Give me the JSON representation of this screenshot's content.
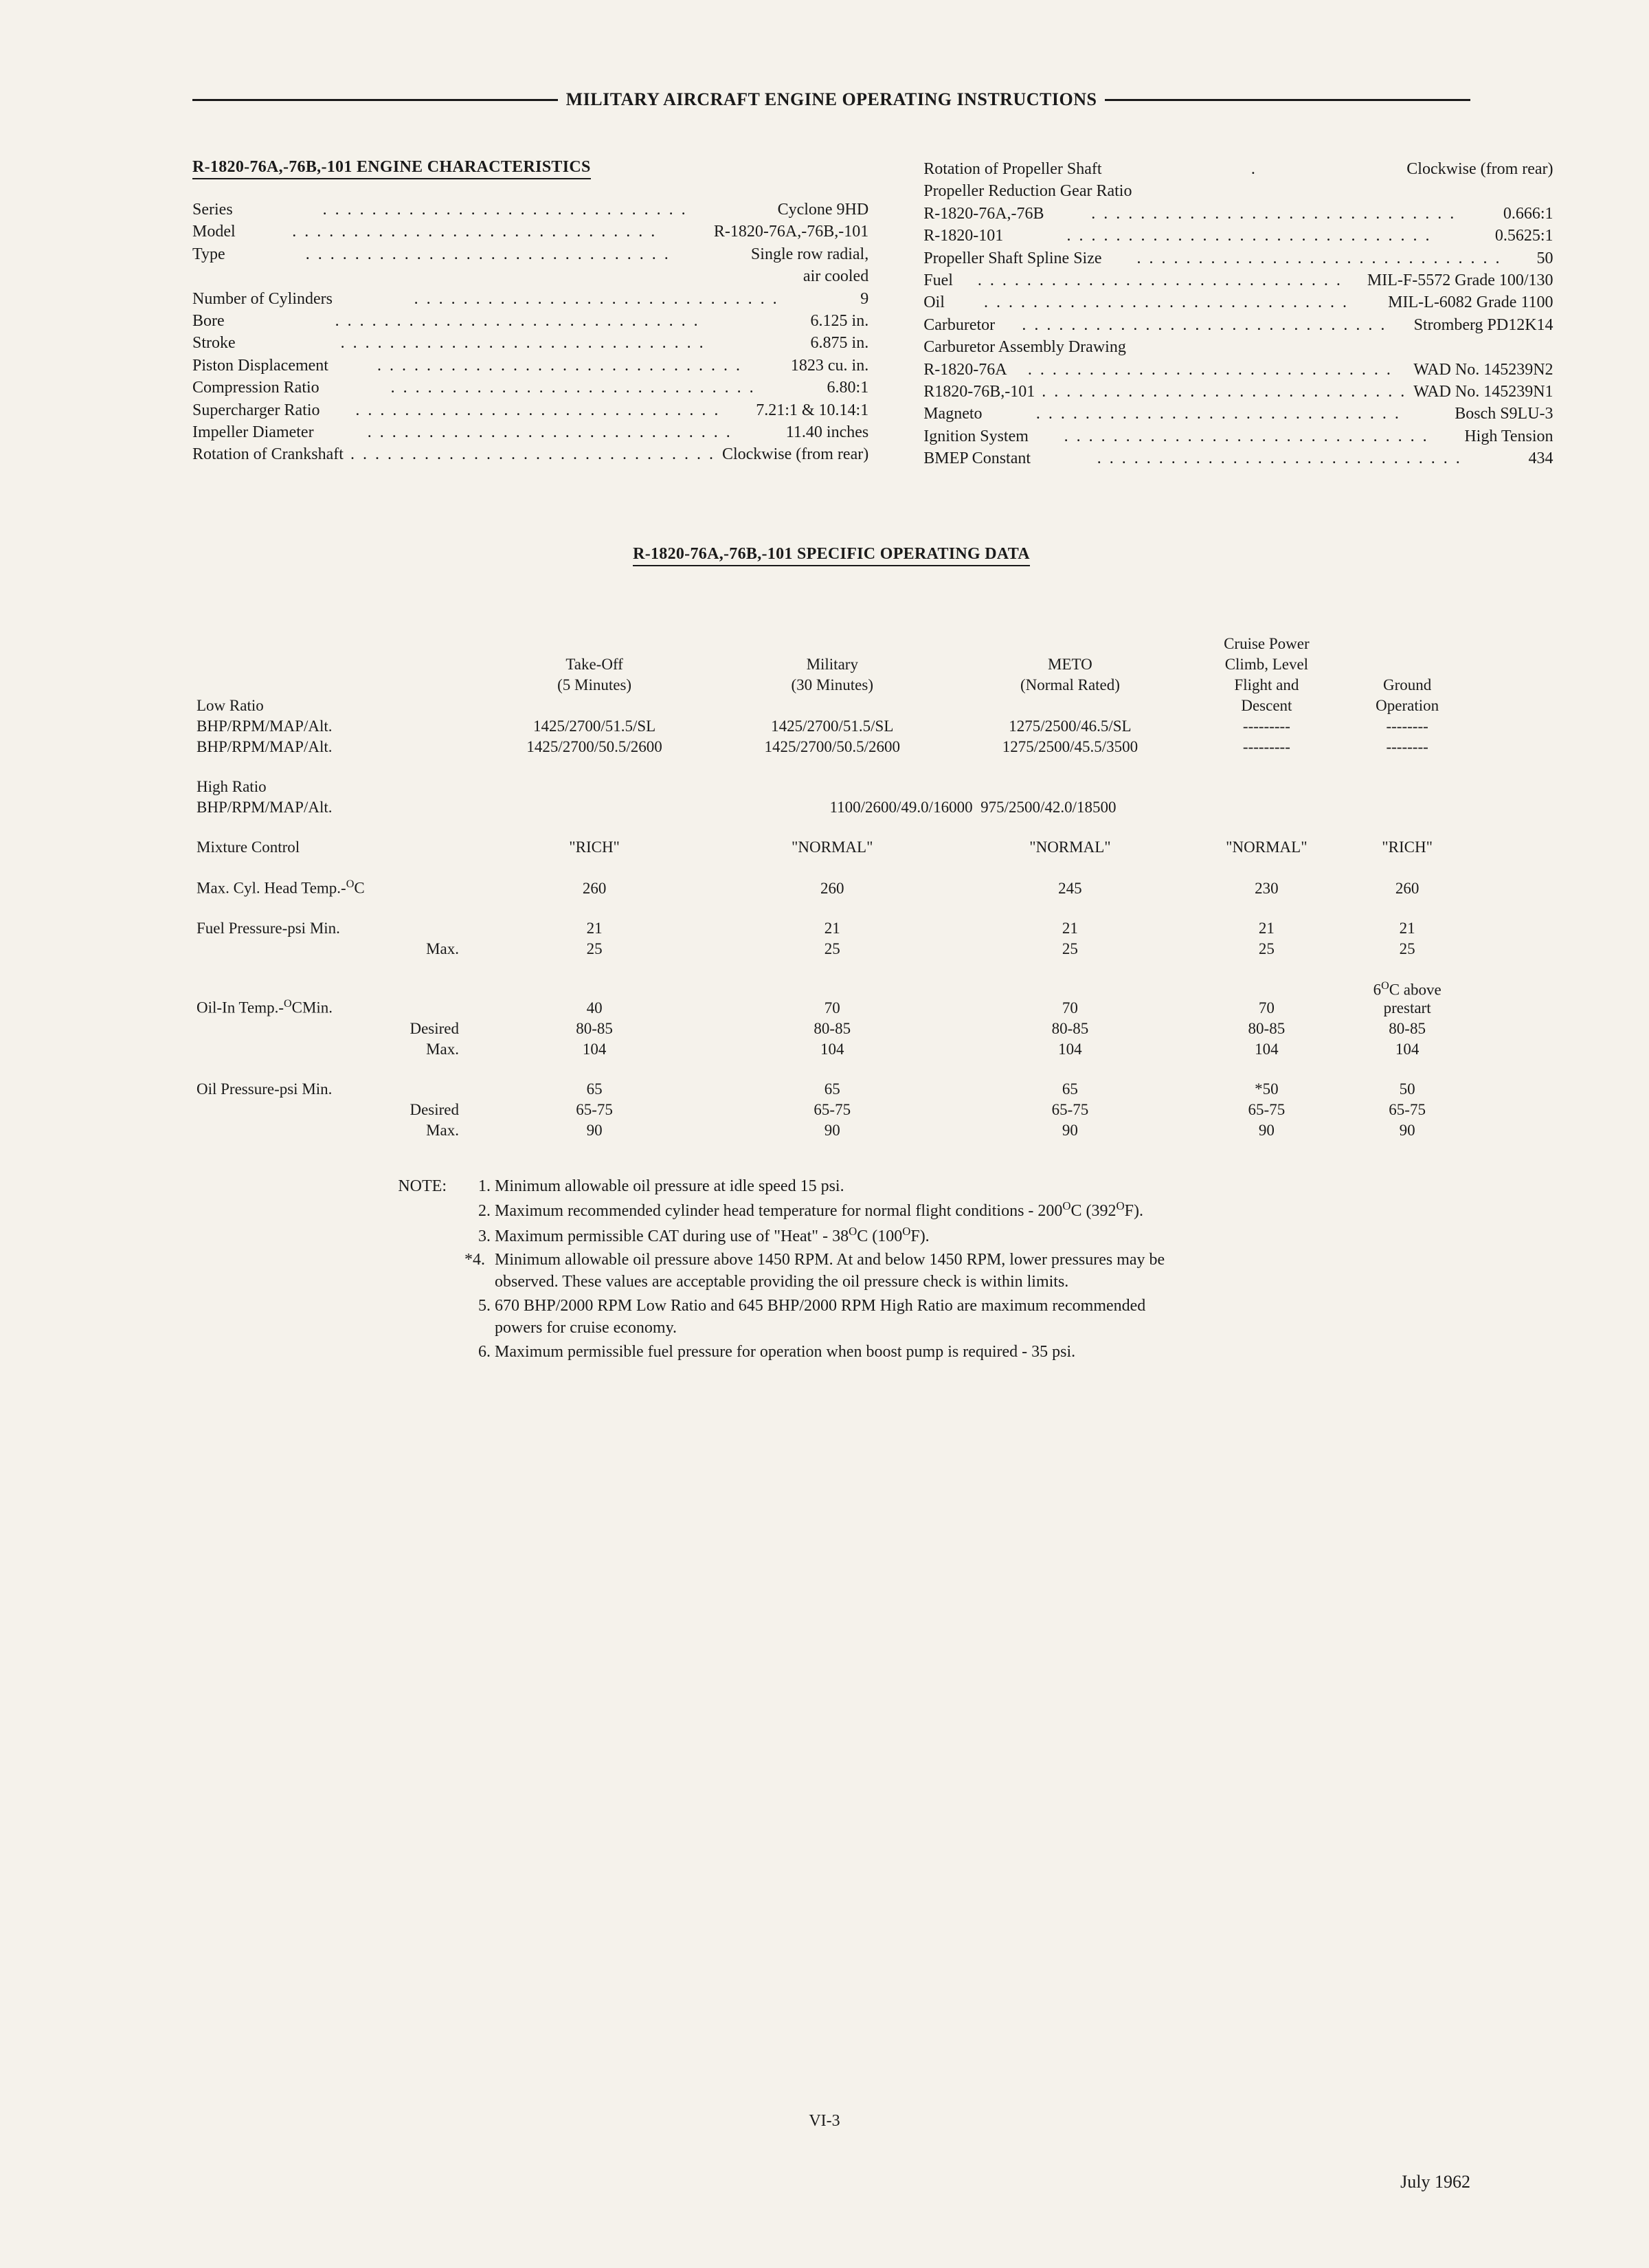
{
  "header": "MILITARY AIRCRAFT ENGINE OPERATING INSTRUCTIONS",
  "engine_char_title": "R-1820-76A,-76B,-101 ENGINE CHARACTERISTICS",
  "specs_left": [
    {
      "label": "Series",
      "value": "Cyclone 9HD"
    },
    {
      "label": "Model",
      "value": "R-1820-76A,-76B,-101"
    },
    {
      "label": "Type",
      "value": "Single row radial,"
    },
    {
      "label": "",
      "value": "air cooled",
      "cont": true
    },
    {
      "label": "Number of Cylinders",
      "value": "9"
    },
    {
      "label": "Bore",
      "value": "6.125 in."
    },
    {
      "label": "Stroke",
      "value": "6.875 in."
    },
    {
      "label": "Piston Displacement",
      "value": "1823 cu. in."
    },
    {
      "label": "Compression Ratio",
      "value": "6.80:1"
    },
    {
      "label": "Supercharger Ratio",
      "value": "7.21:1 & 10.14:1"
    },
    {
      "label": "Impeller Diameter",
      "value": "11.40 inches"
    },
    {
      "label": "Rotation of Crankshaft",
      "value": "Clockwise (from rear)"
    }
  ],
  "specs_right": [
    {
      "label": "Rotation of Propeller Shaft",
      "value": "Clockwise (from rear)",
      "dots": "."
    },
    {
      "label": "Propeller Reduction Gear Ratio",
      "value": "",
      "nodots": true
    },
    {
      "label": "R-1820-76A,-76B",
      "value": "0.666:1"
    },
    {
      "label": "R-1820-101",
      "value": "0.5625:1"
    },
    {
      "label": "Propeller Shaft Spline Size",
      "value": "50"
    },
    {
      "label": "Fuel",
      "value": "MIL-F-5572 Grade 100/130"
    },
    {
      "label": "Oil",
      "value": "MIL-L-6082 Grade 1100"
    },
    {
      "label": "Carburetor",
      "value": "Stromberg PD12K14"
    },
    {
      "label": "Carburetor Assembly Drawing",
      "value": "",
      "nodots": true
    },
    {
      "label": "R-1820-76A",
      "value": "WAD No. 145239N2"
    },
    {
      "label": "R1820-76B,-101",
      "value": "WAD No. 145239N1"
    },
    {
      "label": "Magneto",
      "value": "Bosch S9LU-3"
    },
    {
      "label": "Ignition System",
      "value": "High Tension"
    },
    {
      "label": "BMEP Constant",
      "value": "434"
    }
  ],
  "op_title": "R-1820-76A,-76B,-101 SPECIFIC OPERATING DATA",
  "columns": {
    "takeoff": {
      "l1": "Take-Off",
      "l2": "(5 Minutes)"
    },
    "military": {
      "l1": "Military",
      "l2": "(30 Minutes)"
    },
    "meto": {
      "l1": "METO",
      "l2": "(Normal Rated)"
    },
    "cruise": {
      "l0": "Cruise Power",
      "l1": "Climb, Level",
      "l2": "Flight and",
      "l3": "Descent"
    },
    "ground": {
      "l1": "Ground",
      "l2": "Operation"
    }
  },
  "low_ratio_label": "Low Ratio",
  "bhp_label": "BHP/RPM/MAP/Alt.",
  "low_ratio": [
    [
      "1425/2700/51.5/SL",
      "1425/2700/51.5/SL",
      "1275/2500/46.5/SL",
      "---------",
      "--------"
    ],
    [
      "1425/2700/50.5/2600",
      "1425/2700/50.5/2600",
      "1275/2500/45.5/3500",
      "---------",
      "--------"
    ]
  ],
  "high_ratio_label": "High Ratio",
  "high_ratio_vals": "1100/2600/49.0/16000&nbsp;&nbsp;975/2500/42.0/18500",
  "rows": [
    {
      "label": "Mixture Control",
      "v": [
        "\"RICH\"",
        "\"NORMAL\"",
        "\"NORMAL\"",
        "\"NORMAL\"",
        "\"RICH\""
      ]
    },
    {
      "spacer": true
    },
    {
      "label": "Max. Cyl. Head Temp.-<span class='sup'>O</span>C",
      "v": [
        "260",
        "260",
        "245",
        "230",
        "260"
      ]
    },
    {
      "spacer": true
    },
    {
      "label": "Fuel Pressure-psi Min.",
      "v": [
        "21",
        "21",
        "21",
        "21",
        "21"
      ]
    },
    {
      "label": "",
      "sublabel": "Max.",
      "v": [
        "25",
        "25",
        "25",
        "25",
        "25"
      ]
    },
    {
      "spacer": true
    },
    {
      "label": "Oil-In Temp.-<span class='sup'>O</span>CMin.",
      "v": [
        "40",
        "70",
        "70",
        "70",
        "6<span class='sup'>O</span>C above<br>prestart"
      ]
    },
    {
      "label": "",
      "sublabel": "Desired",
      "v": [
        "80-85",
        "80-85",
        "80-85",
        "80-85",
        "80-85"
      ]
    },
    {
      "label": "",
      "sublabel": "Max.",
      "v": [
        "104",
        "104",
        "104",
        "104",
        "104"
      ]
    },
    {
      "spacer": true
    },
    {
      "label": "Oil Pressure-psi Min.",
      "v": [
        "65",
        "65",
        "65",
        "*50",
        "50"
      ]
    },
    {
      "label": "",
      "sublabel": "Desired",
      "v": [
        "65-75",
        "65-75",
        "65-75",
        "65-75",
        "65-75"
      ]
    },
    {
      "label": "",
      "sublabel": "Max.",
      "v": [
        "90",
        "90",
        "90",
        "90",
        "90"
      ]
    }
  ],
  "notes_label": "NOTE:",
  "notes": [
    "Minimum allowable oil pressure at idle speed 15 psi.",
    "Maximum recommended cylinder head temperature for normal flight conditions - 200<span class='sup'>O</span>C (392<span class='sup'>O</span>F).",
    "Maximum permissible CAT during use of \"Heat\" - 38<span class='sup'>O</span>C (100<span class='sup'>O</span>F).",
    "Minimum allowable oil pressure above 1450 RPM. At and below 1450 RPM, lower pressures may be observed. These values are acceptable providing the oil pressure check is within limits.",
    "670 BHP/2000 RPM Low Ratio and 645 BHP/2000 RPM High Ratio are maximum recommended powers for cruise economy.",
    "Maximum permissible fuel pressure for operation when boost pump is required - 35 psi."
  ],
  "page_num": "VI-3",
  "date": "July 1962"
}
